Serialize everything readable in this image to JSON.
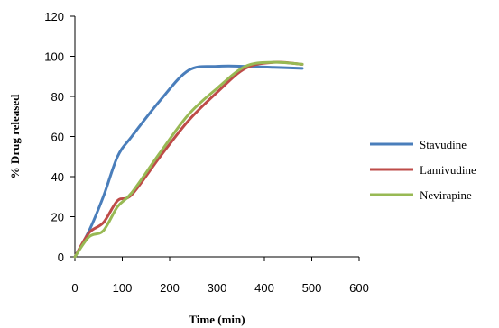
{
  "chart_data": {
    "type": "line",
    "title": "",
    "xlabel": "Time (min)",
    "ylabel": "% Drug released",
    "xlim": [
      0,
      600
    ],
    "ylim": [
      0,
      120
    ],
    "xticks": [
      "0",
      "100",
      "200",
      "300",
      "400",
      "500",
      "600"
    ],
    "yticks": [
      "0",
      "20",
      "40",
      "60",
      "80",
      "100",
      "120"
    ],
    "grid": false,
    "legend_position": "right",
    "series": [
      {
        "name": "Stavudine",
        "color": "#4a7ebb",
        "x": [
          0,
          30,
          60,
          90,
          120,
          180,
          240,
          300,
          360,
          420,
          480
        ],
        "y": [
          0,
          13,
          30,
          50,
          60,
          78,
          93,
          95,
          95,
          94.5,
          94
        ]
      },
      {
        "name": "Lamivudine",
        "color": "#be4b48",
        "x": [
          0,
          30,
          60,
          90,
          120,
          180,
          240,
          300,
          360,
          420,
          480
        ],
        "y": [
          0,
          12,
          17,
          28,
          31,
          50,
          68,
          82,
          94,
          97,
          96
        ]
      },
      {
        "name": "Nevirapine",
        "color": "#98b954",
        "x": [
          0,
          30,
          60,
          90,
          120,
          180,
          240,
          300,
          360,
          420,
          480
        ],
        "y": [
          0,
          10,
          13,
          25,
          32,
          52,
          71,
          84,
          95,
          97,
          96
        ]
      }
    ]
  }
}
